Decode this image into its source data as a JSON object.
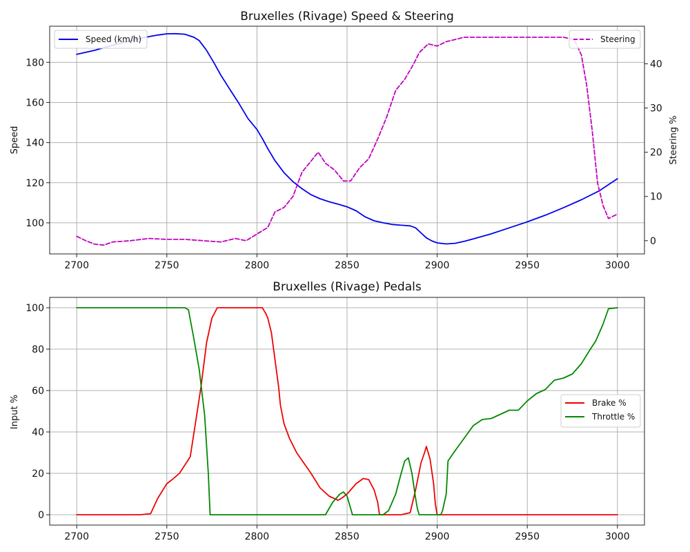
{
  "chart_data": [
    {
      "type": "line",
      "title": "Bruxelles (Rivage) Speed & Steering",
      "xlabel": "",
      "ylabel": "Speed",
      "y2label": "Steering %",
      "xlim": [
        2685,
        3015
      ],
      "ylim": [
        84.5,
        198
      ],
      "y2lim": [
        -3,
        48.5
      ],
      "xticks": [
        2700,
        2750,
        2800,
        2850,
        2900,
        2950,
        3000
      ],
      "yticks": [
        100,
        120,
        140,
        160,
        180
      ],
      "y2ticks": [
        0,
        10,
        20,
        30,
        40
      ],
      "grid": true,
      "series": [
        {
          "name": "Speed (km/h)",
          "axis": "left",
          "color": "#0000ee",
          "style": "solid",
          "legend": "top-left",
          "x": [
            2700,
            2710,
            2720,
            2730,
            2740,
            2745,
            2750,
            2755,
            2760,
            2765,
            2768,
            2772,
            2776,
            2780,
            2785,
            2790,
            2795,
            2800,
            2803,
            2806,
            2810,
            2815,
            2820,
            2825,
            2830,
            2835,
            2840,
            2845,
            2850,
            2855,
            2860,
            2865,
            2870,
            2875,
            2880,
            2885,
            2888,
            2891,
            2894,
            2897,
            2900,
            2905,
            2910,
            2915,
            2920,
            2930,
            2940,
            2950,
            2960,
            2970,
            2980,
            2990,
            3000
          ],
          "values": [
            184,
            186,
            188.5,
            190.8,
            192.8,
            193.6,
            194.2,
            194.3,
            194,
            192.5,
            190.8,
            186,
            180,
            173.5,
            166.5,
            159.5,
            152,
            146.5,
            142,
            137,
            131,
            125,
            120.5,
            117,
            114,
            112,
            110.5,
            109.3,
            108,
            106,
            103,
            101,
            100,
            99.2,
            98.8,
            98.5,
            97.5,
            95,
            92.5,
            91,
            90,
            89.5,
            89.8,
            90.8,
            92,
            94.5,
            97.5,
            100.5,
            103.8,
            107.5,
            111.5,
            116,
            122
          ]
        },
        {
          "name": "Steering",
          "axis": "right",
          "color": "#c000c0",
          "style": "dashed",
          "legend": "top-right",
          "x": [
            2700,
            2705,
            2710,
            2715,
            2720,
            2730,
            2740,
            2750,
            2760,
            2770,
            2780,
            2788,
            2794,
            2800,
            2806,
            2810,
            2815,
            2820,
            2825,
            2830,
            2834,
            2838,
            2843,
            2848,
            2852,
            2857,
            2862,
            2867,
            2872,
            2877,
            2882,
            2887,
            2890,
            2895,
            2900,
            2905,
            2910,
            2915,
            2920,
            2930,
            2940,
            2950,
            2960,
            2970,
            2976,
            2980,
            2983,
            2986,
            2989,
            2992,
            2995,
            3000
          ],
          "values": [
            1,
            0,
            -0.8,
            -1,
            -0.3,
            0,
            0.5,
            0.3,
            0.3,
            0,
            -0.3,
            0.5,
            0,
            1.5,
            3,
            6.5,
            7.5,
            10,
            15.5,
            18,
            20,
            17.5,
            16,
            13.5,
            13.5,
            16.5,
            18.5,
            23,
            28,
            34,
            36.5,
            40,
            42.5,
            44.5,
            44,
            45,
            45.5,
            46,
            46,
            46,
            46,
            46,
            46,
            46,
            45.5,
            42,
            35,
            25,
            13,
            8,
            5,
            6
          ]
        }
      ]
    },
    {
      "type": "line",
      "title": "Bruxelles (Rivage) Pedals",
      "xlabel": "",
      "ylabel": "Input %",
      "xlim": [
        2685,
        3015
      ],
      "ylim": [
        -5,
        105
      ],
      "xticks": [
        2700,
        2750,
        2800,
        2850,
        2900,
        2950,
        3000
      ],
      "yticks": [
        0,
        20,
        40,
        60,
        80,
        100
      ],
      "grid": true,
      "legend": "center-right",
      "series": [
        {
          "name": "Brake %",
          "color": "#ee0000",
          "x": [
            2700,
            2735,
            2741,
            2745,
            2750,
            2753,
            2757,
            2760,
            2763,
            2766,
            2769,
            2772,
            2775,
            2778,
            2790,
            2803,
            2805,
            2806,
            2808,
            2810,
            2812,
            2813,
            2815,
            2818,
            2822,
            2826,
            2830,
            2835,
            2840,
            2845,
            2847,
            2850,
            2855,
            2859,
            2862,
            2865,
            2867,
            2868,
            2870,
            2880,
            2885,
            2888,
            2891,
            2893,
            2894,
            2896,
            2898,
            2899,
            2900,
            2910,
            2950,
            3000
          ],
          "values": [
            0,
            0,
            0.5,
            8,
            15,
            17,
            20,
            24,
            28,
            45,
            62,
            83,
            95,
            100,
            100,
            100,
            97,
            95,
            88,
            75,
            62,
            53,
            44,
            37,
            30,
            25,
            20,
            13,
            9,
            7,
            8,
            10,
            15,
            17.5,
            17,
            12,
            6,
            0,
            0,
            0,
            1,
            12,
            25,
            30,
            33,
            27,
            15,
            5,
            0,
            0,
            0,
            0
          ]
        },
        {
          "name": "Throttle %",
          "color": "#008800",
          "x": [
            2700,
            2760,
            2762,
            2765,
            2768,
            2771,
            2773,
            2774,
            2800,
            2838,
            2842,
            2846,
            2848,
            2850,
            2852,
            2853,
            2870,
            2873,
            2877,
            2880,
            2882,
            2884,
            2886,
            2888,
            2889,
            2890,
            2902,
            2903,
            2905,
            2906,
            2910,
            2915,
            2920,
            2925,
            2930,
            2935,
            2940,
            2945,
            2950,
            2955,
            2960,
            2965,
            2970,
            2975,
            2980,
            2985,
            2988,
            2990,
            2992,
            2995,
            3000
          ],
          "values": [
            100,
            100,
            99,
            85,
            70,
            48,
            20,
            0,
            0,
            0,
            6,
            10,
            11,
            9,
            3,
            0,
            0,
            2,
            10,
            20,
            26,
            27.5,
            20,
            8,
            3,
            0,
            0,
            2,
            10,
            26,
            31,
            37,
            43,
            46,
            46.5,
            48.5,
            50.5,
            50.5,
            55,
            58.5,
            60.5,
            65,
            66,
            68,
            73,
            80,
            84,
            88,
            92,
            99.5,
            100
          ]
        }
      ]
    }
  ]
}
